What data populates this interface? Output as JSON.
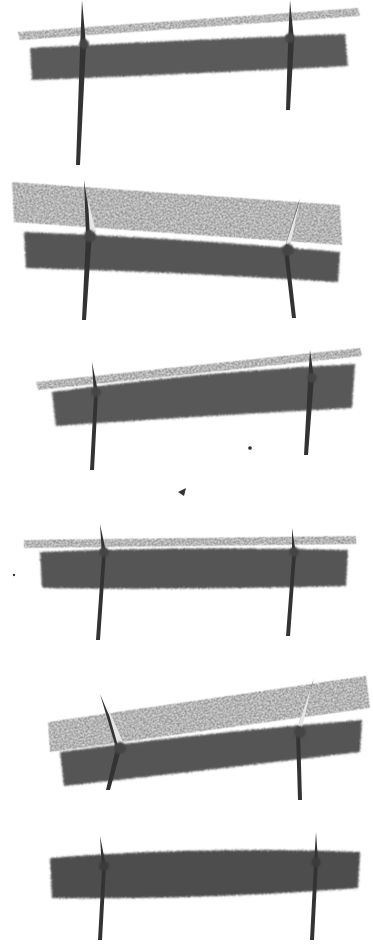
{
  "figure": {
    "description_visible_text": "",
    "panels": [
      {
        "id": "panel-1",
        "rod": "thin"
      },
      {
        "id": "panel-2",
        "rod": "thick"
      },
      {
        "id": "panel-3",
        "rod": "thin"
      },
      {
        "id": "panel-4",
        "rod": "thin"
      },
      {
        "id": "panel-5",
        "rod": "thick"
      },
      {
        "id": "panel-6",
        "rod": "none"
      }
    ],
    "colors": {
      "background": "#ffffff",
      "ink_dark": "#3a3a3a",
      "ink_mid": "#6e6e6e",
      "ink_light": "#a8a8a8"
    }
  }
}
